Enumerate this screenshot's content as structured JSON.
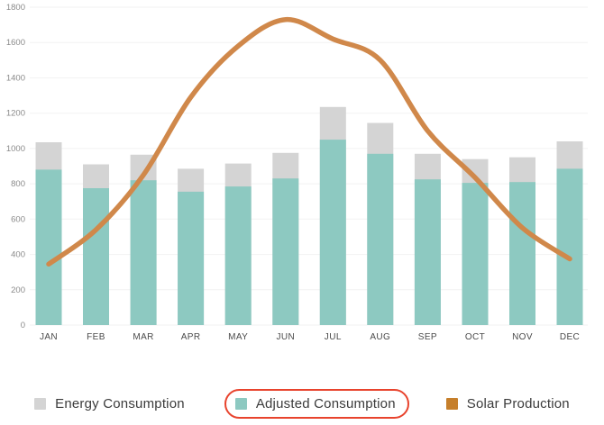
{
  "chart_data": {
    "type": "bar",
    "subtype": "overlay-bars-with-line",
    "title": "",
    "categories": [
      "JAN",
      "FEB",
      "MAR",
      "APR",
      "MAY",
      "JUN",
      "JUL",
      "AUG",
      "SEP",
      "OCT",
      "NOV",
      "DEC"
    ],
    "series": [
      {
        "name": "Energy Consumption",
        "render": "bar",
        "color": "#d4d4d4",
        "swatch_color": "#d4d4d4",
        "values": [
          1035,
          910,
          965,
          885,
          915,
          975,
          1235,
          1145,
          970,
          940,
          950,
          1040
        ]
      },
      {
        "name": "Adjusted Consumption",
        "render": "bar",
        "color": "#8dc9c1",
        "swatch_color": "#8dc9c1",
        "values": [
          880,
          775,
          820,
          755,
          785,
          830,
          1050,
          970,
          825,
          805,
          810,
          885
        ]
      },
      {
        "name": "Solar Production",
        "render": "line",
        "color": "#d0884a",
        "swatch_color": "#c67f2b",
        "values": [
          345,
          540,
          850,
          1290,
          1580,
          1730,
          1620,
          1500,
          1100,
          835,
          550,
          375
        ]
      }
    ],
    "xlabel": "",
    "ylabel": "",
    "ylim": [
      0,
      1800
    ],
    "ytick_step": 200,
    "y_tick_labels": [
      "0",
      "200",
      "400",
      "600",
      "800",
      "1000",
      "1200",
      "1400",
      "1600",
      "1800"
    ],
    "grid": "horizontal",
    "legend_position": "bottom",
    "annotation": {
      "shape": "red-oval",
      "target": "Adjusted Consumption",
      "color": "#e8432d"
    }
  },
  "colors": {
    "background": "#ffffff",
    "grid_line": "#f2f2f2",
    "y_axis_text": "#8a8a8a",
    "month_text": "#4a4a4a",
    "legend_text": "#3b3b3b"
  }
}
